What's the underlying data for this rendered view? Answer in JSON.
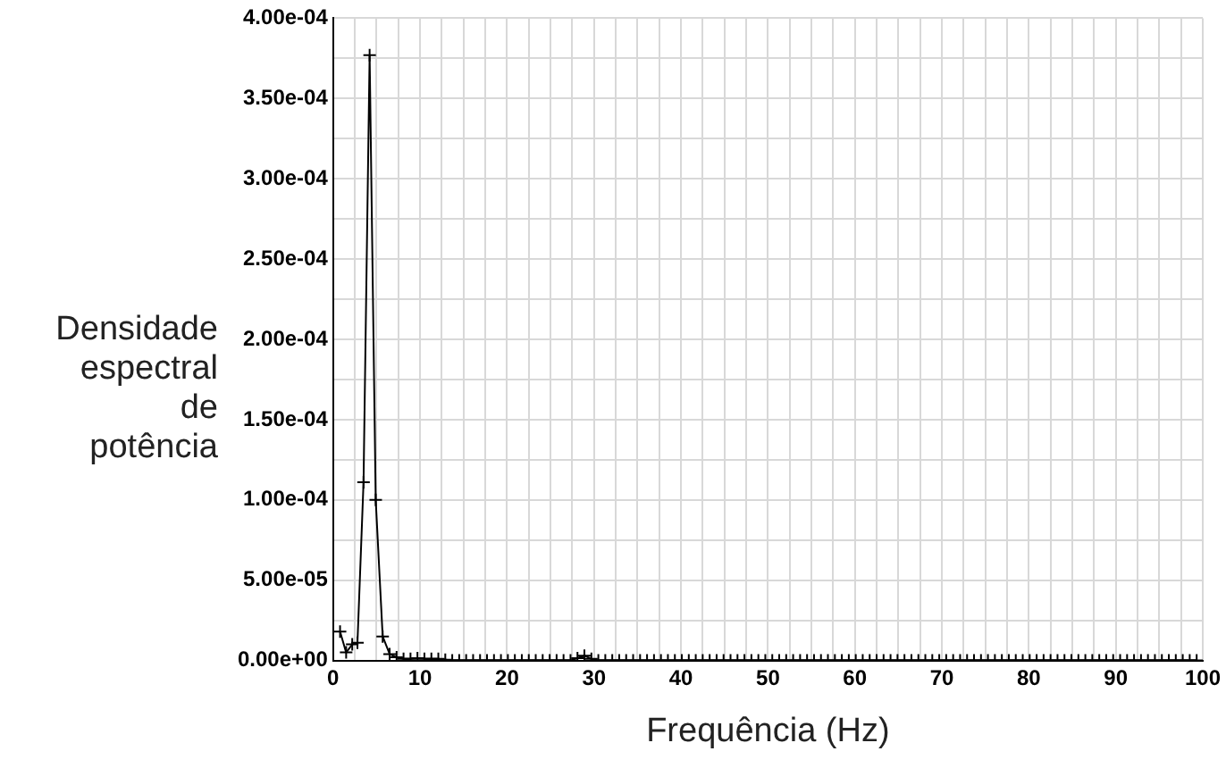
{
  "chart_data": {
    "type": "line",
    "xlabel": "Frequência (Hz)",
    "ylabel": "Densidade espectral de potência",
    "x": [
      0.8,
      1.5,
      2.2,
      2.8,
      3.5,
      4.2,
      4.9,
      5.7,
      6.5,
      7.3,
      8.1,
      8.9,
      9.7,
      10.5,
      11.3,
      12.1,
      12.9,
      13.7,
      14.5,
      15.3,
      16.1,
      16.9,
      17.7,
      18.5,
      19.3,
      20.1,
      20.9,
      21.7,
      22.5,
      23.3,
      24.1,
      24.9,
      25.7,
      26.5,
      27.3,
      28.1,
      28.9,
      29.7,
      30.5,
      31.3,
      32.1,
      32.9,
      33.7,
      34.5,
      35.3,
      36.1,
      36.9,
      37.7,
      38.5,
      39.3,
      40.1,
      40.9,
      41.7,
      42.5,
      43.3,
      44.1,
      44.9,
      45.7,
      46.5,
      47.3,
      48.1,
      48.9,
      49.7,
      50.5,
      51.3,
      52.1,
      52.9,
      53.7,
      54.5,
      55.3,
      56.1,
      56.9,
      57.7,
      58.5,
      59.3,
      60.1,
      60.9,
      61.7,
      62.5,
      63.3,
      64.1,
      64.9,
      65.7,
      66.5,
      67.3,
      68.1,
      68.9,
      69.7,
      70.5,
      71.3,
      72.1,
      72.9,
      73.7,
      74.5,
      75.3,
      76.1,
      76.9,
      77.7,
      78.5,
      79.3,
      80.1,
      80.9,
      81.7,
      82.5,
      83.3,
      84.1,
      84.9,
      85.7,
      86.5,
      87.3,
      88.1,
      88.9,
      89.7,
      90.5,
      91.3,
      92.1,
      92.9,
      93.7,
      94.5,
      95.3,
      96.1,
      96.9,
      97.7,
      98.5,
      99.3
    ],
    "series": [
      {
        "color": "#000000",
        "values": [
          1.8e-05,
          5e-06,
          1e-05,
          1.1e-05,
          0.000111,
          0.000377,
          0.0001,
          1.5e-05,
          4e-06,
          2e-06,
          1e-06,
          1e-06,
          1.5e-06,
          1e-06,
          1e-06,
          1e-06,
          5e-07,
          0,
          0,
          0,
          0,
          0,
          0,
          0,
          0,
          0,
          0,
          0,
          0,
          0,
          0,
          0,
          0,
          0,
          0,
          1.5e-06,
          3e-06,
          1e-06,
          0,
          0,
          0,
          0,
          0,
          0,
          0,
          0,
          0,
          0,
          0,
          0,
          0,
          0,
          0,
          0,
          0,
          0,
          0,
          0,
          0,
          0,
          0,
          0,
          0,
          0,
          0,
          0,
          0,
          0,
          0,
          0,
          0,
          0,
          0,
          0,
          0,
          0,
          0,
          0,
          0,
          0,
          0,
          0,
          0,
          0,
          0,
          0,
          0,
          0,
          0,
          0,
          0,
          0,
          0,
          0,
          0,
          0,
          0,
          0,
          0,
          0,
          0,
          0,
          0,
          0,
          0,
          0,
          0,
          0,
          0,
          0,
          0,
          0,
          0,
          0,
          0,
          0,
          0,
          0,
          0,
          0,
          0,
          0,
          0,
          0,
          0
        ]
      }
    ],
    "xlim": [
      0,
      100
    ],
    "xticks": [
      0,
      {
        "value": 2.5,
        "label": null
      },
      {
        "value": 5,
        "label": null
      },
      {
        "value": 7.5,
        "label": null
      },
      10,
      {
        "value": 12.5,
        "label": null
      },
      {
        "value": 15,
        "label": null
      },
      {
        "value": 17.5,
        "label": null
      },
      20,
      {
        "value": 22.5,
        "label": null
      },
      {
        "value": 25,
        "label": null
      },
      {
        "value": 27.5,
        "label": null
      },
      30,
      {
        "value": 32.5,
        "label": null
      },
      {
        "value": 35,
        "label": null
      },
      {
        "value": 37.5,
        "label": null
      },
      40,
      {
        "value": 42.5,
        "label": null
      },
      {
        "value": 45,
        "label": null
      },
      {
        "value": 47.5,
        "label": null
      },
      50,
      {
        "value": 52.5,
        "label": null
      },
      {
        "value": 55,
        "label": null
      },
      {
        "value": 57.5,
        "label": null
      },
      60,
      {
        "value": 62.5,
        "label": null
      },
      {
        "value": 65,
        "label": null
      },
      {
        "value": 67.5,
        "label": null
      },
      70,
      {
        "value": 72.5,
        "label": null
      },
      {
        "value": 75,
        "label": null
      },
      {
        "value": 77.5,
        "label": null
      },
      80,
      {
        "value": 82.5,
        "label": null
      },
      {
        "value": 85,
        "label": null
      },
      {
        "value": 87.5,
        "label": null
      },
      90,
      {
        "value": 92.5,
        "label": null
      },
      {
        "value": 95,
        "label": null
      },
      {
        "value": 97.5,
        "label": null
      },
      100
    ],
    "ylim": [
      0,
      0.0004
    ],
    "yticks": [
      {
        "value": 0,
        "label": "0.00e+00"
      },
      {
        "value": 2.5e-05,
        "label": null
      },
      {
        "value": 5e-05,
        "label": "5.00e-05"
      },
      {
        "value": 7.5e-05,
        "label": null
      },
      {
        "value": 0.0001,
        "label": "1.00e-04"
      },
      {
        "value": 0.000125,
        "label": null
      },
      {
        "value": 0.00015,
        "label": "1.50e-04"
      },
      {
        "value": 0.000175,
        "label": null
      },
      {
        "value": 0.0002,
        "label": "2.00e-04"
      },
      {
        "value": 0.000225,
        "label": null
      },
      {
        "value": 0.00025,
        "label": "2.50e-04"
      },
      {
        "value": 0.000275,
        "label": null
      },
      {
        "value": 0.0003,
        "label": "3.00e-04"
      },
      {
        "value": 0.000325,
        "label": null
      },
      {
        "value": 0.00035,
        "label": "3.50e-04"
      },
      {
        "value": 0.000375,
        "label": null
      },
      {
        "value": 0.0004,
        "label": "4.00e-04"
      }
    ],
    "grid": true,
    "marker": "cross",
    "line_style": "solid"
  }
}
